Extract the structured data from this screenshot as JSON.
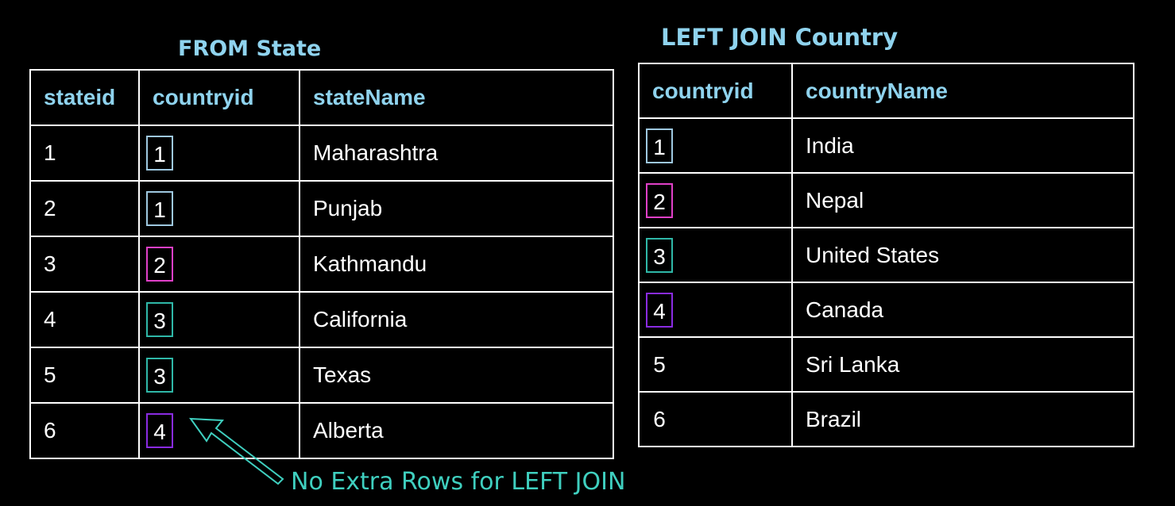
{
  "state": {
    "caption": "FROM State",
    "headers": [
      "stateid",
      "countryid",
      "stateName"
    ],
    "rows": [
      {
        "stateid": "1",
        "countryid": "1",
        "stateName": "Maharashtra",
        "box_color": "#9ec8e0"
      },
      {
        "stateid": "2",
        "countryid": "1",
        "stateName": "Punjab",
        "box_color": "#9ec8e0"
      },
      {
        "stateid": "3",
        "countryid": "2",
        "stateName": "Kathmandu",
        "box_color": "#e040c8"
      },
      {
        "stateid": "4",
        "countryid": "3",
        "stateName": "California",
        "box_color": "#2fb8a8"
      },
      {
        "stateid": "5",
        "countryid": "3",
        "stateName": "Texas",
        "box_color": "#2fb8a8"
      },
      {
        "stateid": "6",
        "countryid": "4",
        "stateName": "Alberta",
        "box_color": "#8a2be2"
      }
    ]
  },
  "country": {
    "caption": "LEFT JOIN Country",
    "headers": [
      "countryid",
      "countryName"
    ],
    "rows": [
      {
        "countryid": "1",
        "countryName": "India",
        "box_color": "#9ec8e0"
      },
      {
        "countryid": "2",
        "countryName": "Nepal",
        "box_color": "#e040c8"
      },
      {
        "countryid": "3",
        "countryName": "United States",
        "box_color": "#2fb8a8"
      },
      {
        "countryid": "4",
        "countryName": "Canada",
        "box_color": "#8a2be2"
      },
      {
        "countryid": "5",
        "countryName": "Sri Lanka",
        "box_color": ""
      },
      {
        "countryid": "6",
        "countryName": "Brazil",
        "box_color": ""
      }
    ]
  },
  "note": "No Extra Rows for LEFT JOIN",
  "colors": {
    "caption": "#8fd3ee",
    "note": "#3fcfbf",
    "grid": "#ffffff",
    "background": "#000000"
  }
}
